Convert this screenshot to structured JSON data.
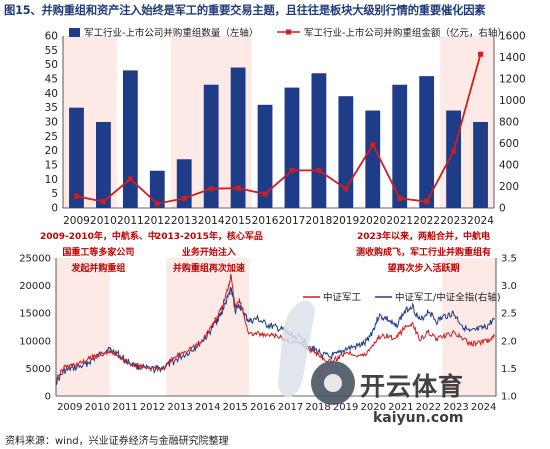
{
  "title": "图15、并购重组和资产注入始终是军工的重要交易主题，且往往是板块大级别行情的重要催化因素",
  "source": "资料来源：wind，兴业证券经济与金融研究院整理",
  "colors": {
    "bar": "#1f3c88",
    "amount_line": "#d01d1d",
    "index_line": "#d01d1d",
    "ratio_line": "#1f3c88",
    "highlight": "#fde9e6"
  },
  "chart_data": [
    {
      "type": "bar",
      "categories": [
        "2009",
        "2010",
        "2011",
        "2012",
        "2013",
        "2014",
        "2015",
        "2016",
        "2017",
        "2018",
        "2019",
        "2020",
        "2021",
        "2022",
        "2023",
        "2024"
      ],
      "series": [
        {
          "name": "军工行业-上市公司并购重组数量（左轴）",
          "type": "bar",
          "axis": "left",
          "values": [
            35,
            30,
            48,
            13,
            17,
            43,
            49,
            36,
            42,
            47,
            39,
            34,
            43,
            46,
            34,
            30
          ]
        },
        {
          "name": "军工行业-上市公司并购重组金额（亿元，右轴）",
          "type": "line",
          "axis": "right",
          "values": [
            110,
            60,
            270,
            40,
            90,
            180,
            185,
            130,
            350,
            350,
            180,
            590,
            90,
            60,
            530,
            1430
          ]
        }
      ],
      "ylim_left": [
        0,
        60
      ],
      "yticks_left": [
        "0",
        "5",
        "10",
        "15",
        "20",
        "25",
        "30",
        "35",
        "40",
        "45",
        "50",
        "55",
        "60"
      ],
      "ylim_right": [
        0,
        1600
      ],
      "yticks_right": [
        "0",
        "200",
        "400",
        "600",
        "800",
        "1000",
        "1200",
        "1400",
        "1600"
      ],
      "highlight_categories": [
        "2009",
        "2010",
        "2013",
        "2014",
        "2015",
        "2023",
        "2024"
      ],
      "legend_position": "top"
    },
    {
      "type": "line",
      "x_labels": [
        "2009",
        "2010",
        "2011",
        "2012",
        "2013",
        "2014",
        "2015",
        "2016",
        "2017",
        "2018",
        "2019",
        "2020",
        "2021",
        "2022",
        "2023",
        "2024"
      ],
      "series": [
        {
          "name": "中证军工",
          "axis": "left",
          "x": [
            2009.0,
            2009.3,
            2009.6,
            2010.0,
            2010.3,
            2010.6,
            2010.9,
            2011.2,
            2011.5,
            2011.9,
            2012.2,
            2012.6,
            2012.9,
            2013.2,
            2013.5,
            2013.9,
            2014.2,
            2014.5,
            2014.8,
            2015.0,
            2015.2,
            2015.35,
            2015.5,
            2015.65,
            2015.8,
            2016.0,
            2016.3,
            2016.6,
            2016.9,
            2017.2,
            2017.5,
            2017.9,
            2018.2,
            2018.5,
            2018.9,
            2019.2,
            2019.5,
            2019.9,
            2020.2,
            2020.5,
            2020.7,
            2021.0,
            2021.3,
            2021.6,
            2021.9,
            2022.2,
            2022.5,
            2022.8,
            2023.1,
            2023.4,
            2023.7,
            2024.0,
            2024.3,
            2024.6,
            2024.9
          ],
          "values": [
            3000,
            5200,
            5600,
            6200,
            7000,
            7600,
            8000,
            7600,
            6400,
            5200,
            5400,
            4900,
            5100,
            6500,
            7700,
            8800,
            9400,
            11600,
            14000,
            15800,
            19000,
            22000,
            16000,
            17500,
            14800,
            11200,
            11300,
            10900,
            11000,
            10400,
            9900,
            9400,
            8400,
            7600,
            6200,
            6800,
            8000,
            7500,
            7400,
            9400,
            10700,
            11000,
            10200,
            12200,
            13200,
            10200,
            11600,
            10300,
            10800,
            11400,
            10600,
            9400,
            9700,
            9900,
            10800
          ]
        },
        {
          "name": "中证军工/中证全指(右轴)",
          "axis": "right",
          "x": [
            2009.0,
            2009.3,
            2009.6,
            2010.0,
            2010.3,
            2010.6,
            2010.9,
            2011.2,
            2011.5,
            2011.9,
            2012.2,
            2012.6,
            2012.9,
            2013.2,
            2013.5,
            2013.9,
            2014.2,
            2014.5,
            2014.8,
            2015.0,
            2015.2,
            2015.35,
            2015.5,
            2015.65,
            2015.8,
            2016.0,
            2016.3,
            2016.6,
            2016.9,
            2017.2,
            2017.5,
            2017.9,
            2018.2,
            2018.5,
            2018.9,
            2019.2,
            2019.5,
            2019.9,
            2020.2,
            2020.5,
            2020.7,
            2021.0,
            2021.3,
            2021.6,
            2021.9,
            2022.2,
            2022.5,
            2022.8,
            2023.1,
            2023.4,
            2023.7,
            2024.0,
            2024.3,
            2024.6,
            2024.9
          ],
          "values": [
            1.25,
            1.45,
            1.5,
            1.55,
            1.65,
            1.75,
            1.85,
            1.78,
            1.65,
            1.55,
            1.5,
            1.48,
            1.52,
            1.6,
            1.7,
            1.82,
            1.95,
            2.1,
            2.35,
            2.5,
            2.75,
            2.95,
            2.55,
            2.65,
            2.5,
            2.35,
            2.4,
            2.3,
            2.25,
            2.2,
            2.1,
            2.05,
            1.9,
            1.8,
            1.7,
            1.75,
            1.85,
            1.9,
            1.95,
            2.2,
            2.45,
            2.4,
            2.25,
            2.5,
            2.65,
            2.35,
            2.55,
            2.35,
            2.45,
            2.5,
            2.3,
            2.15,
            2.2,
            2.25,
            2.4
          ]
        }
      ],
      "ylim_left": [
        0,
        25000
      ],
      "yticks_left": [
        "0",
        "5000",
        "10000",
        "15000",
        "20000",
        "25000"
      ],
      "ylim_right": [
        1.0,
        3.5
      ],
      "yticks_right": [
        "1.0",
        "1.5",
        "2.0",
        "2.5",
        "3.0",
        "3.5"
      ],
      "highlight_ranges": [
        [
          2009.0,
          2010.95
        ],
        [
          2013.0,
          2016.0
        ],
        [
          2023.0,
          2024.95
        ]
      ],
      "annotations": [
        [
          "2009-2010年，中航系、中",
          "国重工等多家公司",
          "发起并购重组"
        ],
        [
          "2013-2015年，核心军品",
          "业务开始注入",
          "并购重组再次加速"
        ],
        [
          "2023年以来，两船合并，中航电",
          "测收购成飞，军工行业并购重组有",
          "望再次步入活跃期"
        ]
      ],
      "legend_position": "right"
    }
  ],
  "watermark": {
    "text": "开云体育",
    "url": "kaiyun.com"
  }
}
